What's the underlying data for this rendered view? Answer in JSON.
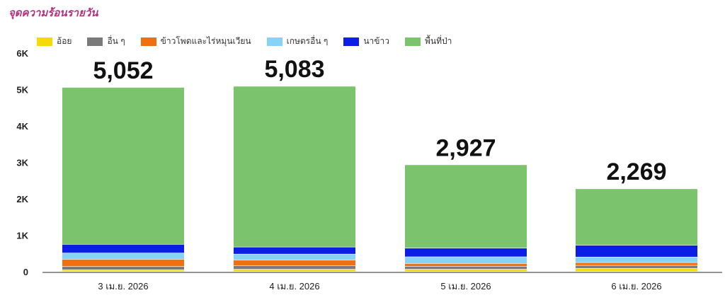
{
  "title": "จุดความร้อนรายวัน",
  "chart_data": {
    "type": "bar",
    "stacked": true,
    "title": "จุดความร้อนรายวัน",
    "categories": [
      "3 เม.ย. 2026",
      "4 เม.ย. 2026",
      "5 เม.ย. 2026",
      "6 เม.ย. 2026"
    ],
    "totals": [
      "5,052",
      "5,083",
      "2,927",
      "2,269"
    ],
    "series": [
      {
        "name": "อ้อย",
        "color": "#f5d90a",
        "values": [
          45,
          60,
          60,
          85
        ]
      },
      {
        "name": "อื่น ๆ",
        "color": "#7a7a7a",
        "values": [
          90,
          100,
          80,
          80
        ]
      },
      {
        "name": "ข้าวโพดและไร่หมุนเวียน",
        "color": "#f07010",
        "values": [
          200,
          155,
          80,
          80
        ]
      },
      {
        "name": "เกษตรอื่น ๆ",
        "color": "#87d3f5",
        "values": [
          170,
          160,
          180,
          150
        ]
      },
      {
        "name": "นาข้าว",
        "color": "#0a1ee6",
        "values": [
          240,
          195,
          240,
          325
        ]
      },
      {
        "name": "พื้นที่ป่า",
        "color": "#7cc36e",
        "values": [
          4307,
          4413,
          2287,
          1549
        ]
      }
    ],
    "yticks": [
      "0",
      "1K",
      "2K",
      "3K",
      "4K",
      "5K",
      "6K"
    ],
    "ylim": [
      0,
      6000
    ],
    "legend": "top"
  }
}
